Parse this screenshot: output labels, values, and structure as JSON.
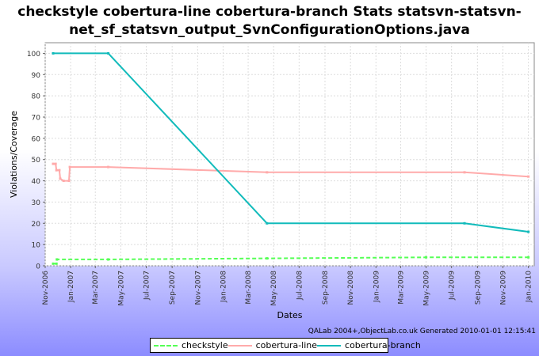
{
  "title_lines": [
    "checkstyle cobertura-line cobertura-branch  Stats statsvn-statsvn-",
    "net_sf_statsvn_output_SvnConfigurationOptions.java"
  ],
  "credit": "QALab 2004+,ObjectLab.co.uk Generated 2010-01-01 12:15:41",
  "colors": {
    "checkstyle": "#55ff55",
    "cobertura-line": "#ffaaaa",
    "cobertura-branch": "#11bbbb",
    "plot_bg": "#ffffff",
    "grid": "#dddddd"
  },
  "chart_data": {
    "type": "line",
    "title": "checkstyle cobertura-line cobertura-branch  Stats statsvn-statsvn-net_sf_statsvn_output_SvnConfigurationOptions.java",
    "xlabel": "Dates",
    "ylabel": "Violations/Coverage",
    "xlim": [
      "2006-11-01",
      "2010-01-15"
    ],
    "ylim": [
      0,
      105
    ],
    "yticks": [
      0,
      10,
      20,
      30,
      40,
      50,
      60,
      70,
      80,
      90,
      100
    ],
    "xticks": [
      "2006-11-01",
      "2007-01-01",
      "2007-03-01",
      "2007-05-01",
      "2007-07-01",
      "2007-09-01",
      "2007-11-01",
      "2008-01-01",
      "2008-03-01",
      "2008-05-01",
      "2008-07-01",
      "2008-09-01",
      "2008-11-01",
      "2009-01-01",
      "2009-03-01",
      "2009-05-01",
      "2009-07-01",
      "2009-09-01",
      "2009-11-01",
      "2010-01-01"
    ],
    "xtick_labels": [
      "Nov-2006",
      "Jan-2007",
      "Mar-2007",
      "May-2007",
      "Jul-2007",
      "Sep-2007",
      "Nov-2007",
      "Jan-2008",
      "Mar-2008",
      "May-2008",
      "Jul-2008",
      "Sep-2008",
      "Nov-2008",
      "Jan-2009",
      "Mar-2009",
      "May-2009",
      "Jul-2009",
      "Sep-2009",
      "Nov-2009",
      "Jan-2010"
    ],
    "grid": true,
    "legend": "bottom",
    "series": [
      {
        "name": "checkstyle",
        "style": "dashed",
        "points": [
          [
            "2006-11-20",
            1
          ],
          [
            "2006-11-28",
            1
          ],
          [
            "2006-11-29",
            3
          ],
          [
            "2007-04-01",
            3
          ],
          [
            "2008-04-15",
            3.5
          ],
          [
            "2009-05-01",
            4
          ],
          [
            "2010-01-01",
            4
          ]
        ]
      },
      {
        "name": "cobertura-line",
        "style": "solid",
        "points": [
          [
            "2006-11-20",
            48
          ],
          [
            "2006-11-26",
            48
          ],
          [
            "2006-11-28",
            45
          ],
          [
            "2006-12-05",
            45
          ],
          [
            "2006-12-07",
            41
          ],
          [
            "2006-12-15",
            40
          ],
          [
            "2006-12-28",
            40
          ],
          [
            "2006-12-30",
            46.5
          ],
          [
            "2007-04-01",
            46.5
          ],
          [
            "2008-04-15",
            44
          ],
          [
            "2009-08-01",
            44
          ],
          [
            "2010-01-01",
            42
          ]
        ]
      },
      {
        "name": "cobertura-branch",
        "style": "solid",
        "points": [
          [
            "2006-11-20",
            100
          ],
          [
            "2007-04-01",
            100
          ],
          [
            "2008-04-15",
            20
          ],
          [
            "2009-08-01",
            20
          ],
          [
            "2010-01-01",
            16
          ]
        ]
      }
    ]
  }
}
